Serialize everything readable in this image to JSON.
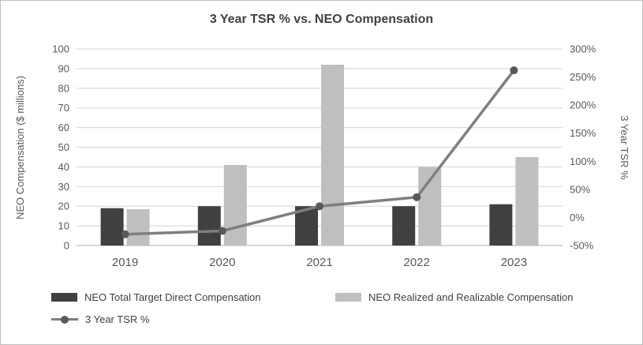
{
  "chart_data": {
    "type": "combo-bar-line",
    "title": "3 Year TSR % vs. NEO Compensation",
    "categories": [
      "2019",
      "2020",
      "2021",
      "2022",
      "2023"
    ],
    "bar_series": [
      {
        "name": "NEO Total Target Direct Compensation",
        "color": "#404040",
        "axis": "left",
        "values": [
          19,
          20,
          20,
          20,
          21
        ]
      },
      {
        "name": "NEO Realized and Realizable Compensation",
        "color": "#bfbfbf",
        "axis": "left",
        "values": [
          18.5,
          41,
          92,
          40,
          45
        ]
      }
    ],
    "line_series": [
      {
        "name": "3 Year TSR %",
        "color": "#7f7f7f",
        "marker_color": "#595959",
        "axis": "right",
        "values": [
          -30,
          -24,
          20,
          36,
          262
        ]
      }
    ],
    "left_axis": {
      "label": "NEO Compensation ($ millions)",
      "min": 0,
      "max": 100,
      "step": 10,
      "tick_labels": [
        "0",
        "10",
        "20",
        "30",
        "40",
        "50",
        "60",
        "70",
        "80",
        "90",
        "100"
      ]
    },
    "right_axis": {
      "label": "3 Year TSR %",
      "min": -50,
      "max": 300,
      "step": 50,
      "tick_labels": [
        "-50%",
        "0%",
        "50%",
        "100%",
        "150%",
        "200%",
        "250%",
        "300%"
      ]
    },
    "grid": true,
    "grid_color": "#d9d9d9",
    "axis_color": "#bfbfbf",
    "text_color": "#595959",
    "title_color": "#404040",
    "legend_position": "bottom-left"
  }
}
